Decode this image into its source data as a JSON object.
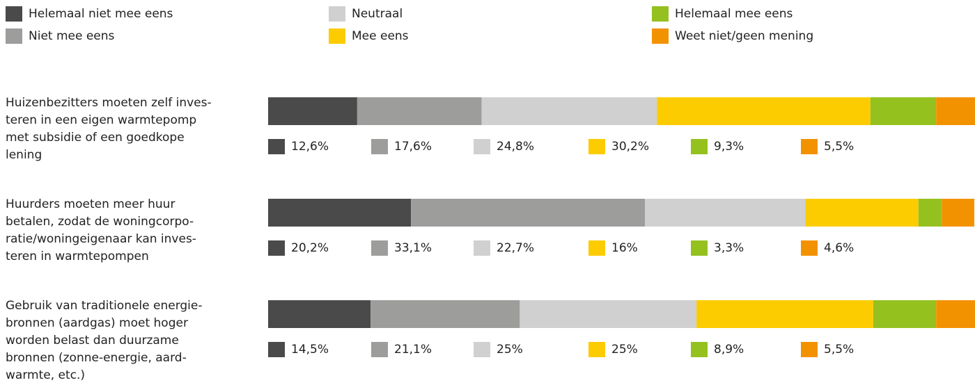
{
  "chart_data": {
    "type": "stacked-bar-horizontal",
    "categories": [
      [
        "Huizenbezitters moeten zelf inves-",
        "teren in een eigen warmtepomp",
        "met subsidie of een goedkope",
        "lening"
      ],
      [
        "Huurders moeten meer huur",
        "betalen, zodat de woningcorpo-",
        "ratie/woningeigenaar kan inves-",
        "teren in warmtepompen"
      ],
      [
        "Gebruik van traditionele energie-",
        "bronnen (aardgas) moet hoger",
        "worden belast dan duurzame",
        "bronnen (zonne-energie, aard-",
        "warmte, etc.)"
      ]
    ],
    "xlim": [
      0,
      100
    ],
    "series": [
      {
        "name": "Helemaal niet mee eens",
        "color": "#4a4a4a",
        "values": [
          12.6,
          20.2,
          14.5
        ],
        "value_labels": [
          "12,6%",
          "20,2%",
          "14,5%"
        ]
      },
      {
        "name": "Niet mee eens",
        "color": "#9d9d9c",
        "values": [
          17.6,
          33.1,
          21.1
        ],
        "value_labels": [
          "17,6%",
          "33,1%",
          "21,1%"
        ]
      },
      {
        "name": "Neutraal",
        "color": "#d0d0d0",
        "values": [
          24.8,
          22.7,
          25
        ],
        "value_labels": [
          "24,8%",
          "22,7%",
          "25%"
        ]
      },
      {
        "name": "Mee eens",
        "color": "#fccc00",
        "values": [
          30.2,
          16,
          25
        ],
        "value_labels": [
          "30,2%",
          "16%",
          "25%"
        ]
      },
      {
        "name": "Helemaal mee eens",
        "color": "#95c11f",
        "values": [
          9.3,
          3.3,
          8.9
        ],
        "value_labels": [
          "9,3%",
          "3,3%",
          "8,9%"
        ]
      },
      {
        "name": "Weet niet/geen mening",
        "color": "#f39200",
        "values": [
          5.5,
          4.6,
          5.5
        ],
        "value_labels": [
          "5,5%",
          "4,6%",
          "5,5%"
        ]
      }
    ],
    "legend": "top"
  }
}
